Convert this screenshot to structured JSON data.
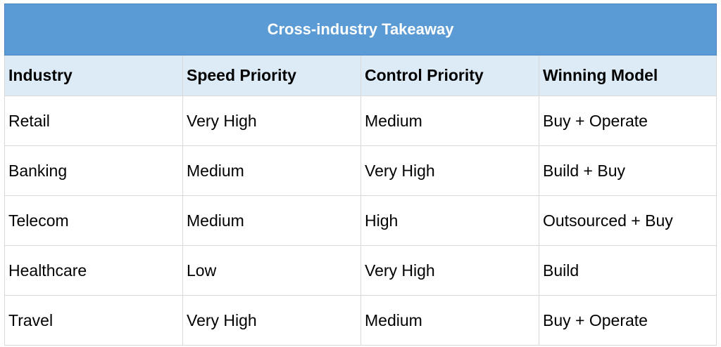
{
  "table": {
    "title": "Cross-industry Takeaway",
    "headers": [
      "Industry",
      "Speed Priority",
      "Control Priority",
      "Winning Model"
    ],
    "rows": [
      [
        "Retail",
        "Very High",
        "Medium",
        "Buy + Operate"
      ],
      [
        "Banking",
        "Medium",
        "Very High",
        "Build + Buy"
      ],
      [
        "Telecom",
        "Medium",
        "High",
        "Outsourced + Buy"
      ],
      [
        "Healthcare",
        "Low",
        "Very High",
        "Build"
      ],
      [
        "Travel",
        "Very High",
        "Medium",
        "Buy + Operate"
      ]
    ]
  }
}
